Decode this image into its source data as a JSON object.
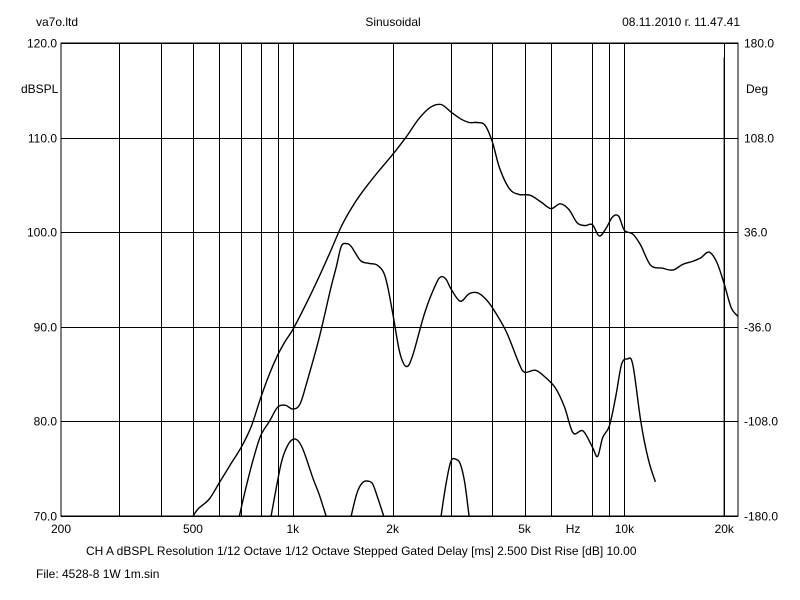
{
  "header": {
    "left": "va7o.ltd",
    "center": "Sinusoidal",
    "right": "08.11.2010 г. 11.47.41"
  },
  "footer": {
    "line1": "CH A   dBSPL   Resolution 1/12 Octave   1/12 Octave   Stepped   Gated   Delay [ms] 2.500   Dist Rise [dB] 10.00",
    "line2": "File: 4528-8 1W 1m.sin"
  },
  "chart_data": {
    "type": "line",
    "xscale": "log",
    "xlim": [
      200,
      22000
    ],
    "x_tick_labels": [
      {
        "value": 200,
        "label": "200"
      },
      {
        "value": 500,
        "label": "500"
      },
      {
        "value": 1000,
        "label": "1k"
      },
      {
        "value": 2000,
        "label": "2k"
      },
      {
        "value": 5000,
        "label": "5k"
      },
      {
        "value": 7000,
        "label": "Hz"
      },
      {
        "value": 10000,
        "label": "10k"
      },
      {
        "value": 20000,
        "label": "20k"
      }
    ],
    "x_grid": [
      300,
      400,
      600,
      700,
      800,
      900,
      3000,
      4000,
      6000,
      8000,
      9000
    ],
    "ylabel": "dBSPL",
    "ylim": [
      70,
      120
    ],
    "y_ticks": [
      "70.0",
      "80.0",
      "90.0",
      "100.0",
      "110.0",
      "120.0"
    ],
    "y2label": "Deg",
    "y2lim": [
      -180,
      180
    ],
    "y2_ticks": [
      "-180.0",
      "-108.0",
      "-36.0",
      "36.0",
      "108.0",
      "180.0"
    ],
    "grid": true,
    "series": [
      {
        "axis": "left",
        "points": [
          [
            500,
            70
          ],
          [
            520,
            70.8
          ],
          [
            560,
            71.8
          ],
          [
            600,
            73.5
          ],
          [
            650,
            75.5
          ],
          [
            700,
            77.3
          ],
          [
            750,
            79.5
          ],
          [
            800,
            82.5
          ],
          [
            850,
            85
          ],
          [
            900,
            87
          ],
          [
            950,
            88.5
          ],
          [
            1000,
            89.7
          ],
          [
            1100,
            92.5
          ],
          [
            1200,
            95.3
          ],
          [
            1300,
            98
          ],
          [
            1400,
            100.6
          ],
          [
            1500,
            102.5
          ],
          [
            1600,
            104
          ],
          [
            1800,
            106.3
          ],
          [
            2000,
            108.2
          ],
          [
            2200,
            110.1
          ],
          [
            2400,
            112
          ],
          [
            2600,
            113.2
          ],
          [
            2800,
            113.5
          ],
          [
            3000,
            112.7
          ],
          [
            3200,
            112
          ],
          [
            3400,
            111.6
          ],
          [
            3600,
            111.6
          ],
          [
            3800,
            111.3
          ],
          [
            4000,
            109.5
          ],
          [
            4200,
            106.8
          ],
          [
            4500,
            104.6
          ],
          [
            4800,
            104
          ],
          [
            5200,
            103.9
          ],
          [
            5600,
            103.2
          ],
          [
            6000,
            102.5
          ],
          [
            6400,
            103
          ],
          [
            6800,
            102.4
          ],
          [
            7200,
            101
          ],
          [
            7600,
            100.7
          ],
          [
            8000,
            100.8
          ],
          [
            8400,
            99.6
          ],
          [
            8800,
            100.4
          ],
          [
            9200,
            101.6
          ],
          [
            9600,
            101.7
          ],
          [
            10000,
            100.2
          ],
          [
            10600,
            99.8
          ],
          [
            11200,
            98.6
          ],
          [
            12000,
            96.5
          ],
          [
            13000,
            96.2
          ],
          [
            14000,
            96
          ],
          [
            15000,
            96.6
          ],
          [
            16000,
            96.9
          ],
          [
            17000,
            97.3
          ],
          [
            18000,
            97.9
          ],
          [
            19000,
            96.8
          ],
          [
            20000,
            94.5
          ],
          [
            21000,
            92
          ],
          [
            22000,
            91.1
          ]
        ]
      },
      {
        "axis": "left",
        "points": [
          [
            690,
            70
          ],
          [
            720,
            72.8
          ],
          [
            760,
            76
          ],
          [
            800,
            78.5
          ],
          [
            850,
            80
          ],
          [
            900,
            81.5
          ],
          [
            950,
            81.7
          ],
          [
            1000,
            81.3
          ],
          [
            1050,
            81.8
          ],
          [
            1100,
            84
          ],
          [
            1200,
            88.8
          ],
          [
            1300,
            94
          ],
          [
            1350,
            96.2
          ],
          [
            1400,
            98.5
          ],
          [
            1450,
            98.8
          ],
          [
            1500,
            98.5
          ],
          [
            1600,
            97
          ],
          [
            1700,
            96.7
          ],
          [
            1800,
            96.5
          ],
          [
            1900,
            95.3
          ],
          [
            2000,
            91.5
          ],
          [
            2100,
            87.3
          ],
          [
            2200,
            85.8
          ],
          [
            2300,
            87
          ],
          [
            2500,
            91.5
          ],
          [
            2700,
            94.5
          ],
          [
            2800,
            95.3
          ],
          [
            2900,
            95
          ],
          [
            3000,
            94
          ],
          [
            3200,
            92.7
          ],
          [
            3400,
            93.5
          ],
          [
            3600,
            93.6
          ],
          [
            3800,
            93
          ],
          [
            4000,
            92
          ],
          [
            4400,
            89.5
          ],
          [
            4800,
            86.2
          ],
          [
            5000,
            85.2
          ],
          [
            5400,
            85.4
          ],
          [
            5800,
            84.6
          ],
          [
            6200,
            83.5
          ],
          [
            6600,
            81.5
          ],
          [
            7000,
            78.8
          ],
          [
            7500,
            79
          ],
          [
            8000,
            77.3
          ],
          [
            8300,
            76.3
          ],
          [
            8600,
            78.3
          ],
          [
            9000,
            79.5
          ],
          [
            9400,
            82.5
          ],
          [
            9800,
            86
          ],
          [
            10200,
            86.6
          ],
          [
            10600,
            86
          ],
          [
            11200,
            80
          ],
          [
            11800,
            76
          ],
          [
            12400,
            73.6
          ]
        ]
      },
      {
        "axis": "left",
        "points": [
          [
            860,
            70
          ],
          [
            920,
            75.4
          ],
          [
            960,
            77.3
          ],
          [
            1000,
            78.1
          ],
          [
            1040,
            77.9
          ],
          [
            1080,
            76.8
          ],
          [
            1150,
            74
          ],
          [
            1200,
            72.3
          ],
          [
            1260,
            70
          ]
        ]
      },
      {
        "axis": "left",
        "points": [
          [
            1500,
            70
          ],
          [
            1560,
            72.4
          ],
          [
            1620,
            73.5
          ],
          [
            1680,
            73.7
          ],
          [
            1740,
            73.4
          ],
          [
            1800,
            72
          ],
          [
            1880,
            70
          ]
        ]
      },
      {
        "axis": "left",
        "points": [
          [
            2800,
            70
          ],
          [
            2900,
            73.5
          ],
          [
            3000,
            75.8
          ],
          [
            3100,
            76
          ],
          [
            3200,
            75.5
          ],
          [
            3300,
            73.5
          ],
          [
            3400,
            70
          ]
        ]
      },
      {
        "axis": "left",
        "points": [
          [
            20000,
            70
          ],
          [
            20000,
            118.5
          ]
        ]
      }
    ]
  }
}
